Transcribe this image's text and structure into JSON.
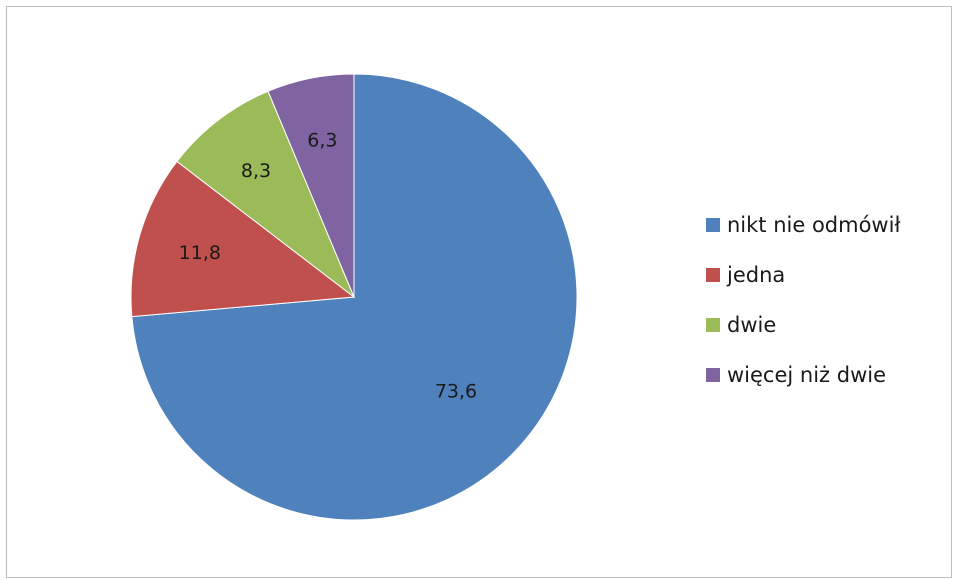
{
  "chart_data": {
    "type": "pie",
    "categories": [
      "nikt nie odmówił",
      "jedna",
      "dwie",
      "więcej niż dwie"
    ],
    "values": [
      73.6,
      11.8,
      8.3,
      6.3
    ],
    "value_labels": [
      "73,6",
      "11,8",
      "8,3",
      "6,3"
    ],
    "colors": [
      "#4f81bd",
      "#c0504d",
      "#9bbb59",
      "#8064a2"
    ],
    "start": "12 o'clock",
    "direction": "clockwise",
    "legend_position": "right",
    "title": ""
  }
}
